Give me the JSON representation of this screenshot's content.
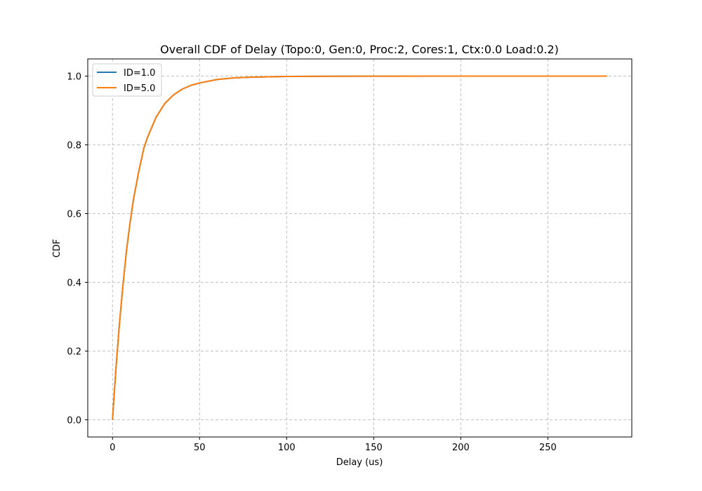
{
  "chart_data": {
    "type": "line",
    "title": "Overall CDF of Delay (Topo:0, Gen:0, Proc:2, Cores:1, Ctx:0.0 Load:0.2)",
    "xlabel": "Delay (us)",
    "ylabel": "CDF",
    "xlim": [
      -14.2,
      298.2
    ],
    "ylim": [
      -0.05,
      1.05
    ],
    "xticks": [
      0,
      50,
      100,
      150,
      200,
      250
    ],
    "yticks": [
      0.0,
      0.2,
      0.4,
      0.6,
      0.8,
      1.0
    ],
    "xtick_labels": [
      "0",
      "50",
      "100",
      "150",
      "200",
      "250"
    ],
    "ytick_labels": [
      "0.0",
      "0.2",
      "0.4",
      "0.6",
      "0.8",
      "1.0"
    ],
    "grid": true,
    "legend_position": "top-left",
    "series": [
      {
        "name": "ID=1.0",
        "color": "#1f77b4",
        "x": [
          0,
          2,
          4,
          6,
          8,
          10,
          12,
          15,
          18,
          20,
          25,
          30,
          35,
          40,
          45,
          50,
          60,
          70,
          80,
          90,
          100,
          120,
          150,
          200,
          229
        ],
        "y": [
          0.0,
          0.15,
          0.28,
          0.39,
          0.49,
          0.57,
          0.64,
          0.72,
          0.79,
          0.82,
          0.88,
          0.92,
          0.945,
          0.962,
          0.973,
          0.98,
          0.99,
          0.995,
          0.997,
          0.998,
          0.999,
          0.9995,
          0.9998,
          1.0,
          1.0
        ]
      },
      {
        "name": "ID=5.0",
        "color": "#ff7f0e",
        "x": [
          0,
          2,
          4,
          6,
          8,
          10,
          12,
          15,
          18,
          20,
          25,
          30,
          35,
          40,
          45,
          50,
          60,
          70,
          80,
          90,
          100,
          120,
          150,
          200,
          250,
          284
        ],
        "y": [
          0.0,
          0.15,
          0.28,
          0.39,
          0.49,
          0.57,
          0.64,
          0.72,
          0.79,
          0.82,
          0.88,
          0.92,
          0.945,
          0.962,
          0.973,
          0.98,
          0.99,
          0.995,
          0.997,
          0.998,
          0.999,
          0.9995,
          0.9998,
          1.0,
          1.0,
          1.0
        ]
      }
    ]
  }
}
